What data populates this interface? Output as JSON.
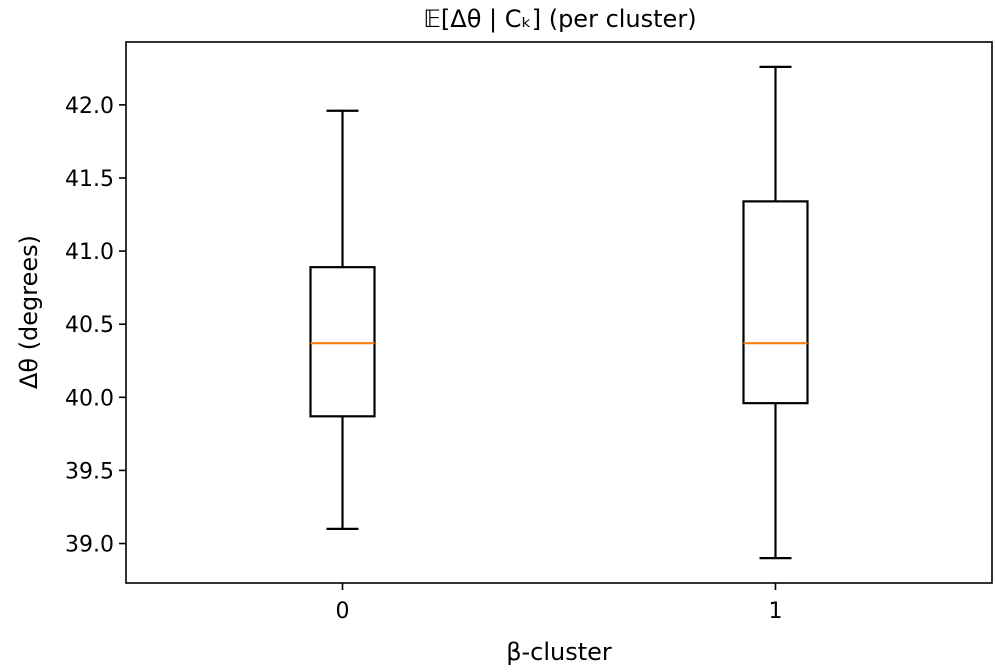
{
  "chart_data": {
    "type": "box",
    "title": "𝔼[Δθ | Cₖ] (per cluster)",
    "xlabel": "β-cluster",
    "ylabel": "Δθ (degrees)",
    "categories": [
      "0",
      "1"
    ],
    "boxes": [
      {
        "category": "0",
        "whislo": 39.1,
        "q1": 39.87,
        "med": 40.37,
        "q3": 40.89,
        "whishi": 41.96
      },
      {
        "category": "1",
        "whislo": 38.9,
        "q1": 39.96,
        "med": 40.37,
        "q3": 41.34,
        "whishi": 42.26
      }
    ],
    "ylim": [
      38.73,
      42.43
    ],
    "yticks": [
      39.0,
      39.5,
      40.0,
      40.5,
      41.0,
      41.5,
      42.0
    ],
    "ytick_labels": [
      "39.0",
      "39.5",
      "40.0",
      "40.5",
      "41.0",
      "41.5",
      "42.0"
    ],
    "grid": false,
    "median_color": "#ff7f0e",
    "box_color": "#000000"
  }
}
